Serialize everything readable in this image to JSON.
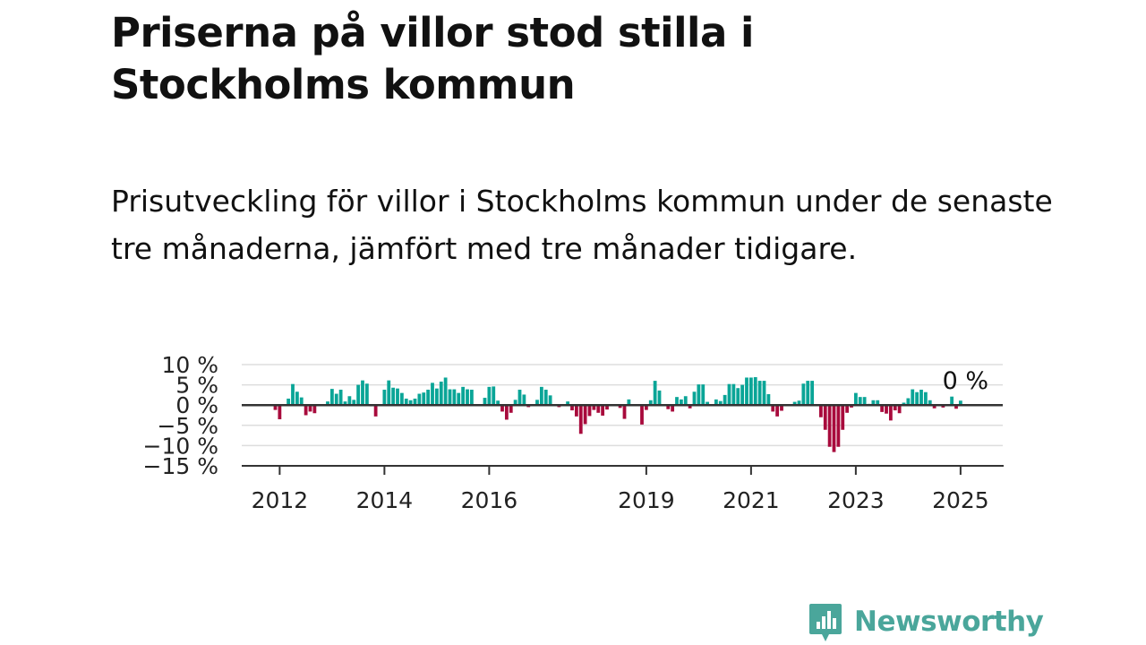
{
  "title": "Priserna på villor stod stilla i Stockholms kommun",
  "subtitle": "Prisutveckling för villor i Stockholms kommun under de senaste tre månaderna, jämfört med tre månader tidigare.",
  "brand": "Newsworthy",
  "colors": {
    "positive": "#0aa597",
    "negative": "#a80a3c",
    "brand": "#4aa69b",
    "axis": "#333333",
    "grid": "#dddddd"
  },
  "chart_data": {
    "type": "bar",
    "ylabel": "",
    "xlabel": "",
    "ylim": [
      -15,
      10
    ],
    "y_ticks": [
      10,
      5,
      0,
      -5,
      -10,
      -15
    ],
    "y_tick_labels": [
      "10 %",
      "5 %",
      "0 %",
      "−5 %",
      "−10 %",
      "−15 %"
    ],
    "x_ticks": [
      "2012-01",
      "2014-01",
      "2016-01",
      "2019-01",
      "2021-01",
      "2023-01",
      "2025-01"
    ],
    "x_tick_labels": [
      "2012",
      "2014",
      "2016",
      "2019",
      "2021",
      "2023",
      "2025"
    ],
    "last_value_label": "0 %",
    "grid": true,
    "start_month": "2011-12",
    "series": [
      {
        "values": [
          -1.2,
          -3.5,
          0,
          1.6,
          5.2,
          3.3,
          1.9,
          -2.5,
          -1.6,
          -2.0,
          0,
          0,
          0.9,
          4.0,
          2.8,
          3.8,
          0.9,
          2.2,
          1.3,
          5.0,
          6.1,
          5.3,
          -0.3,
          -2.8,
          0,
          3.8,
          6.1,
          4.3,
          4.1,
          3.0,
          1.6,
          1.2,
          1.6,
          2.8,
          3.1,
          3.8,
          5.5,
          4.1,
          5.8,
          6.8,
          3.9,
          3.9,
          3.0,
          4.5,
          3.9,
          3.8,
          0,
          0,
          1.8,
          4.5,
          4.6,
          1.1,
          -1.6,
          -3.6,
          -1.9,
          1.3,
          3.8,
          2.6,
          -0.5,
          0,
          1.3,
          4.5,
          3.8,
          2.4,
          -0.2,
          -0.5,
          0,
          0.9,
          -1.3,
          -2.8,
          -7.1,
          -4.7,
          -2.7,
          -1.2,
          -1.9,
          -2.6,
          -1.1,
          0,
          0,
          -0.7,
          -3.4,
          1.4,
          0,
          0,
          -4.8,
          -1.2,
          1.2,
          6.0,
          3.6,
          0,
          -1.0,
          -1.6,
          2.0,
          1.4,
          2.2,
          -0.8,
          3.3,
          5.1,
          5.1,
          0.8,
          0,
          1.4,
          1.0,
          2.5,
          5.2,
          5.2,
          4.2,
          5.0,
          6.8,
          6.8,
          6.9,
          6.0,
          6.0,
          2.7,
          -1.6,
          -2.8,
          -1.4,
          0,
          0,
          0.8,
          1.1,
          5.3,
          6.0,
          6.0,
          0,
          -3.0,
          -6.1,
          -10.3,
          -11.6,
          -10.3,
          -6.1,
          -1.9,
          -0.6,
          3.0,
          2.0,
          2.0,
          0.3,
          1.2,
          1.2,
          -1.7,
          -2.1,
          -3.8,
          -1.3,
          -2.0,
          0.6,
          1.7,
          3.9,
          3.2,
          3.8,
          3.2,
          1.2,
          -0.8,
          0,
          -0.6,
          0,
          2.1,
          -0.9,
          1.1,
          0
        ]
      }
    ]
  }
}
